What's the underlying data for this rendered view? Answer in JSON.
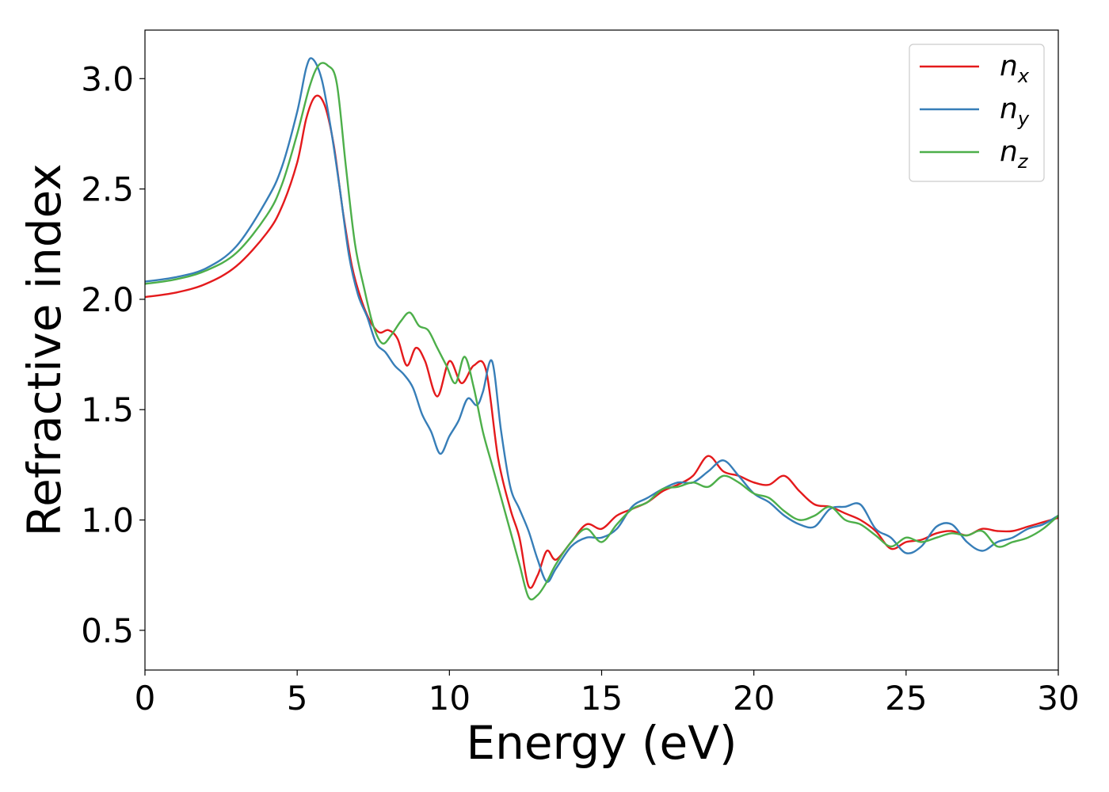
{
  "chart_data": {
    "type": "line",
    "xlabel": "Energy (eV)",
    "ylabel": "Refractive index",
    "xlim": [
      0,
      30
    ],
    "ylim": [
      0.32,
      3.22
    ],
    "xticks": [
      0,
      5,
      10,
      15,
      20,
      25,
      30
    ],
    "xtick_labels": [
      "0",
      "5",
      "10",
      "15",
      "20",
      "25",
      "30"
    ],
    "yticks": [
      0.5,
      1.0,
      1.5,
      2.0,
      2.5,
      3.0
    ],
    "ytick_labels": [
      "0.5",
      "1.0",
      "1.5",
      "2.0",
      "2.5",
      "3.0"
    ],
    "grid": false,
    "legend_position": "top-right",
    "series": [
      {
        "name": "n",
        "subscript": "x",
        "color": "#e41a1c",
        "x": [
          0,
          1,
          2,
          3,
          4,
          4.5,
          5,
          5.3,
          5.6,
          5.9,
          6.2,
          6.5,
          6.8,
          7.1,
          7.4,
          7.7,
          8.0,
          8.3,
          8.6,
          8.9,
          9.2,
          9.6,
          10.0,
          10.4,
          10.8,
          11.2,
          11.6,
          12.0,
          12.3,
          12.6,
          12.9,
          13.2,
          13.5,
          14.0,
          14.5,
          15.0,
          15.5,
          16.0,
          16.5,
          17.0,
          17.5,
          18.0,
          18.5,
          19.0,
          19.5,
          20.0,
          20.5,
          21.0,
          21.5,
          22.0,
          22.5,
          23.0,
          23.5,
          24.0,
          24.5,
          25.0,
          25.5,
          26.0,
          26.5,
          27.0,
          27.5,
          28.0,
          28.5,
          29.0,
          29.5,
          30.0
        ],
        "y": [
          2.01,
          2.03,
          2.07,
          2.15,
          2.3,
          2.42,
          2.62,
          2.82,
          2.92,
          2.88,
          2.7,
          2.4,
          2.15,
          2.0,
          1.9,
          1.85,
          1.86,
          1.82,
          1.7,
          1.78,
          1.72,
          1.56,
          1.72,
          1.62,
          1.7,
          1.68,
          1.28,
          1.05,
          0.92,
          0.7,
          0.75,
          0.86,
          0.82,
          0.9,
          0.98,
          0.96,
          1.02,
          1.05,
          1.08,
          1.13,
          1.16,
          1.2,
          1.29,
          1.22,
          1.2,
          1.17,
          1.16,
          1.2,
          1.13,
          1.07,
          1.06,
          1.03,
          1.0,
          0.95,
          0.87,
          0.9,
          0.91,
          0.94,
          0.95,
          0.93,
          0.96,
          0.95,
          0.95,
          0.97,
          0.99,
          1.01
        ]
      },
      {
        "name": "n",
        "subscript": "y",
        "color": "#377eb8",
        "x": [
          0,
          1,
          2,
          3,
          4,
          4.5,
          5,
          5.3,
          5.5,
          5.8,
          6.1,
          6.4,
          6.7,
          7.0,
          7.3,
          7.6,
          7.9,
          8.2,
          8.5,
          8.8,
          9.1,
          9.4,
          9.7,
          10.0,
          10.3,
          10.6,
          10.9,
          11.1,
          11.4,
          11.7,
          12.0,
          12.3,
          12.6,
          12.9,
          13.2,
          13.5,
          14.0,
          14.5,
          15.0,
          15.5,
          16.0,
          16.5,
          17.0,
          17.5,
          18.0,
          18.5,
          19.0,
          19.5,
          20.0,
          20.5,
          21.0,
          21.5,
          22.0,
          22.5,
          23.0,
          23.5,
          24.0,
          24.5,
          25.0,
          25.5,
          26.0,
          26.5,
          27.0,
          27.5,
          28.0,
          28.5,
          29.0,
          29.5,
          30.0
        ],
        "y": [
          2.08,
          2.1,
          2.14,
          2.24,
          2.45,
          2.6,
          2.85,
          3.05,
          3.09,
          3.0,
          2.78,
          2.5,
          2.2,
          2.02,
          1.92,
          1.8,
          1.76,
          1.7,
          1.66,
          1.6,
          1.48,
          1.4,
          1.3,
          1.38,
          1.45,
          1.55,
          1.52,
          1.58,
          1.72,
          1.4,
          1.15,
          1.05,
          0.95,
          0.82,
          0.72,
          0.78,
          0.88,
          0.92,
          0.92,
          0.96,
          1.06,
          1.1,
          1.14,
          1.17,
          1.17,
          1.22,
          1.27,
          1.2,
          1.12,
          1.08,
          1.02,
          0.98,
          0.97,
          1.05,
          1.06,
          1.07,
          0.96,
          0.92,
          0.85,
          0.88,
          0.97,
          0.98,
          0.9,
          0.86,
          0.9,
          0.92,
          0.96,
          0.98,
          1.02
        ]
      },
      {
        "name": "n",
        "subscript": "z",
        "color": "#4daf4a",
        "x": [
          0,
          1,
          2,
          3,
          4,
          4.5,
          5,
          5.4,
          5.7,
          6.0,
          6.3,
          6.6,
          6.9,
          7.2,
          7.5,
          7.8,
          8.1,
          8.4,
          8.7,
          9.0,
          9.3,
          9.6,
          9.9,
          10.2,
          10.5,
          10.8,
          11.1,
          11.4,
          11.7,
          12.0,
          12.3,
          12.6,
          12.9,
          13.2,
          13.5,
          14.0,
          14.5,
          15.0,
          15.5,
          16.0,
          16.5,
          17.0,
          17.5,
          18.0,
          18.5,
          19.0,
          19.5,
          20.0,
          20.5,
          21.0,
          21.5,
          22.0,
          22.5,
          23.0,
          23.5,
          24.0,
          24.5,
          25.0,
          25.5,
          26.0,
          26.5,
          27.0,
          27.5,
          28.0,
          28.5,
          29.0,
          29.5,
          30.0
        ],
        "y": [
          2.07,
          2.09,
          2.13,
          2.21,
          2.38,
          2.52,
          2.75,
          2.96,
          3.06,
          3.06,
          2.98,
          2.6,
          2.25,
          2.05,
          1.88,
          1.8,
          1.84,
          1.9,
          1.94,
          1.88,
          1.86,
          1.78,
          1.7,
          1.62,
          1.74,
          1.6,
          1.4,
          1.25,
          1.1,
          0.95,
          0.8,
          0.65,
          0.66,
          0.72,
          0.8,
          0.9,
          0.96,
          0.9,
          0.98,
          1.05,
          1.08,
          1.14,
          1.15,
          1.17,
          1.15,
          1.2,
          1.17,
          1.12,
          1.1,
          1.04,
          1.0,
          1.02,
          1.06,
          1.0,
          0.98,
          0.93,
          0.88,
          0.92,
          0.9,
          0.92,
          0.94,
          0.93,
          0.95,
          0.88,
          0.9,
          0.92,
          0.96,
          1.02
        ]
      }
    ]
  }
}
